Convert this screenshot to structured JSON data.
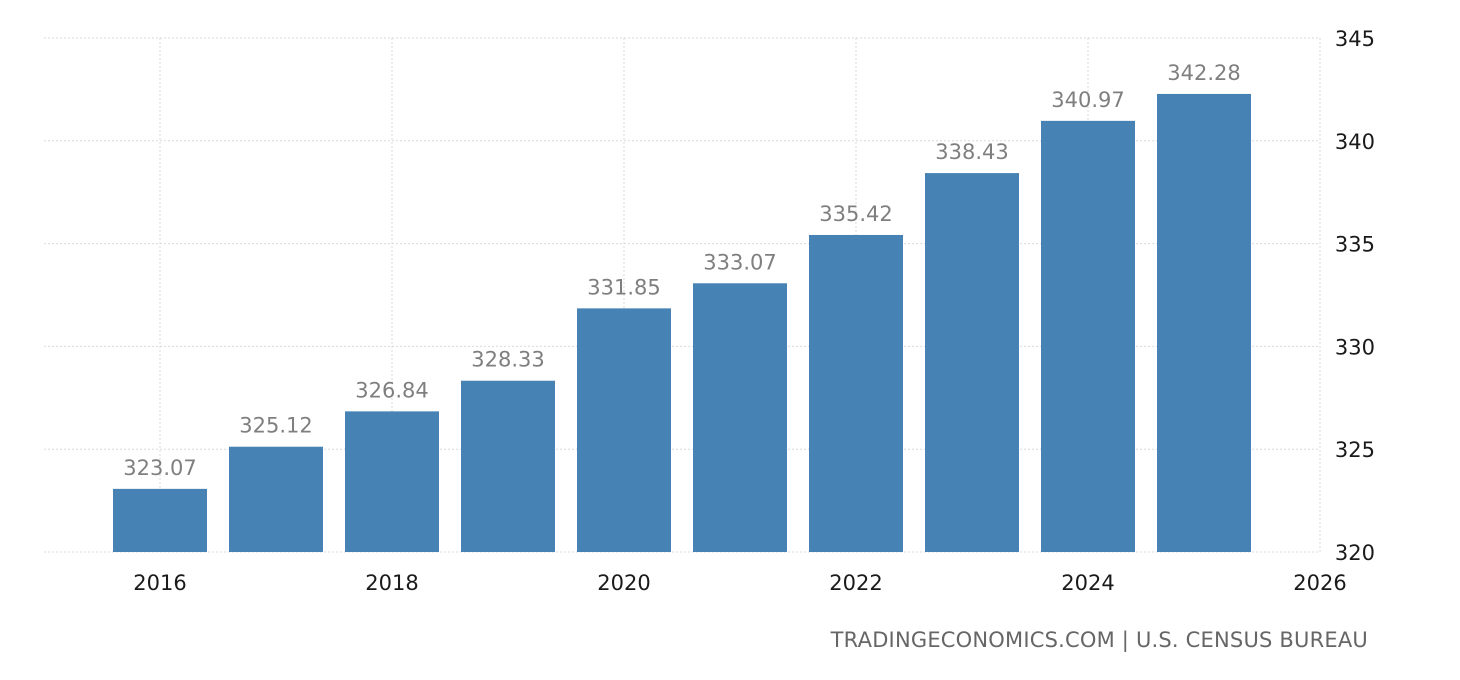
{
  "chart_data": {
    "type": "bar",
    "title": "",
    "xlabel": "",
    "ylabel": "",
    "x": [
      2016,
      2017,
      2018,
      2019,
      2020,
      2021,
      2022,
      2023,
      2024,
      2025
    ],
    "values": [
      323.07,
      325.12,
      326.84,
      328.33,
      331.85,
      333.07,
      335.42,
      338.43,
      340.97,
      342.28
    ],
    "data_labels": [
      "323.07",
      "325.12",
      "326.84",
      "328.33",
      "331.85",
      "333.07",
      "335.42",
      "338.43",
      "340.97",
      "342.28"
    ],
    "xlim": [
      2015,
      2026
    ],
    "ylim": [
      320,
      345
    ],
    "x_ticks": [
      2016,
      2018,
      2020,
      2022,
      2024,
      2026
    ],
    "x_tick_labels": [
      "2016",
      "2018",
      "2020",
      "2022",
      "2024",
      "2026"
    ],
    "y_ticks": [
      320,
      325,
      330,
      335,
      340,
      345
    ],
    "y_tick_labels": [
      "320",
      "325",
      "330",
      "335",
      "340",
      "345"
    ],
    "y_axis_side": "right",
    "grid": true,
    "legend": "none",
    "colors": {
      "bar": "#4682b4",
      "grid": "#d9d9d9",
      "data_label": "#7f7f7f",
      "tick_label": "#1a1a1a",
      "source": "#666666"
    }
  },
  "source": {
    "text": "TRADINGECONOMICS.COM | U.S. CENSUS BUREAU"
  }
}
